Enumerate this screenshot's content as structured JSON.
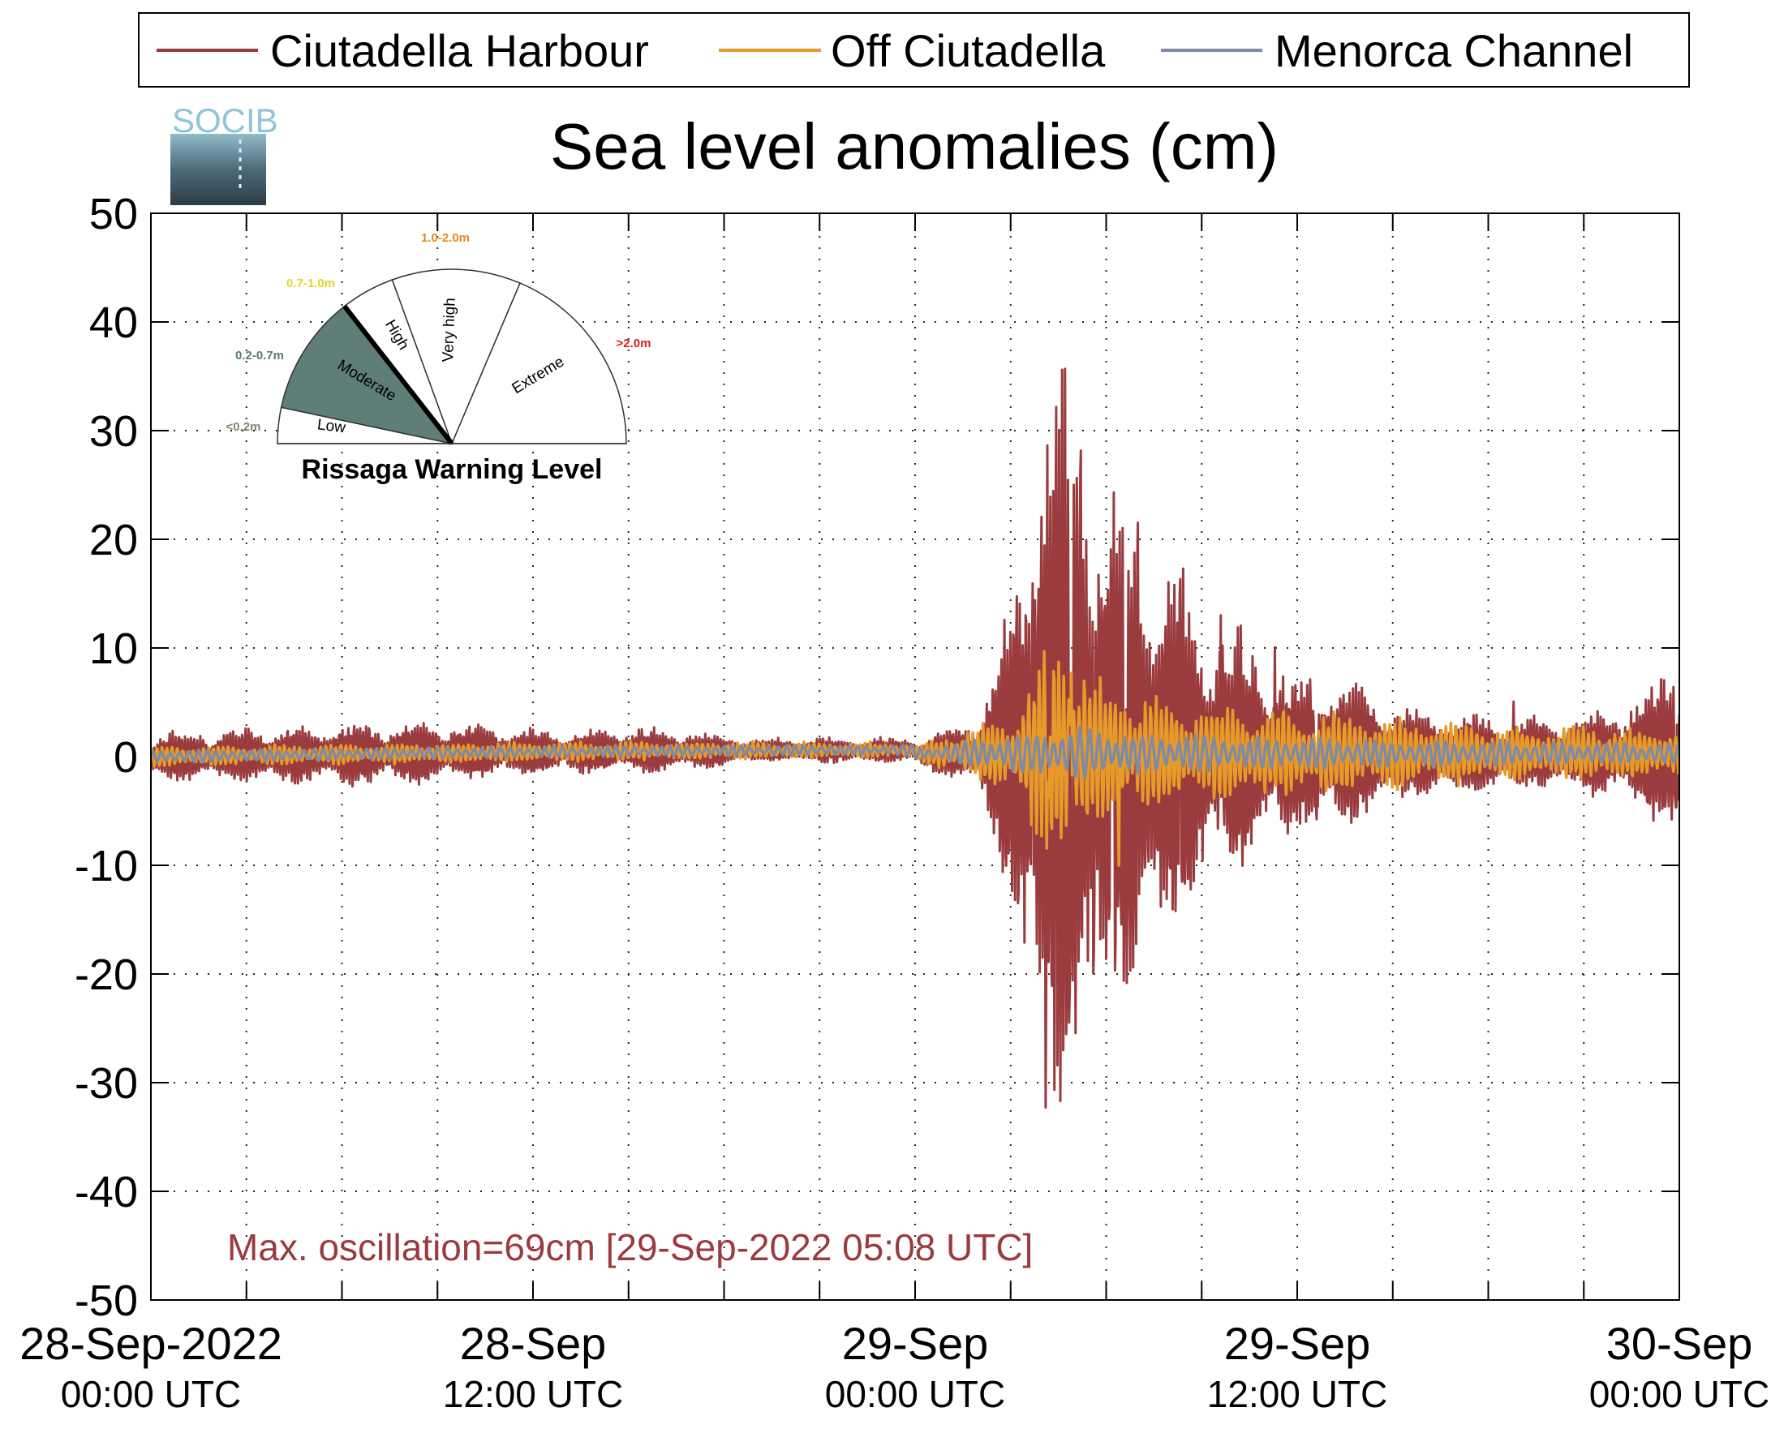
{
  "chart_data": {
    "type": "line",
    "title": "Sea level anomalies (cm)",
    "ylim": [
      -50,
      50
    ],
    "yticks": [
      50,
      40,
      30,
      20,
      10,
      0,
      -10,
      -20,
      -30,
      -40,
      -50
    ],
    "xlim_hours": [
      0,
      48
    ],
    "xticks": [
      {
        "hour": 0,
        "line1": "28-Sep-2022",
        "line2": "00:00 UTC"
      },
      {
        "hour": 12,
        "line1": "28-Sep",
        "line2": "12:00 UTC"
      },
      {
        "hour": 24,
        "line1": "29-Sep",
        "line2": "00:00 UTC"
      },
      {
        "hour": 36,
        "line1": "29-Sep",
        "line2": "12:00 UTC"
      },
      {
        "hour": 48,
        "line1": "30-Sep",
        "line2": "00:00 UTC"
      }
    ],
    "minor_xtick_hours": [
      3,
      6,
      9,
      15,
      18,
      21,
      27,
      30,
      33,
      39,
      42,
      45
    ],
    "grid": true,
    "legend_position": "top",
    "series": [
      {
        "name": "Ciutadella Harbour",
        "color": "#9a3b3e",
        "envelope": [
          [
            0,
            2
          ],
          [
            3,
            2.2
          ],
          [
            6,
            2.5
          ],
          [
            9,
            2.5
          ],
          [
            12,
            1.8
          ],
          [
            16,
            1.8
          ],
          [
            19,
            1
          ],
          [
            23,
            1
          ],
          [
            24,
            1
          ],
          [
            26,
            3
          ],
          [
            27,
            12
          ],
          [
            28,
            30
          ],
          [
            29,
            30
          ],
          [
            30,
            22
          ],
          [
            31,
            20
          ],
          [
            32,
            15
          ],
          [
            33,
            12
          ],
          [
            35,
            8
          ],
          [
            36,
            6
          ],
          [
            37,
            7
          ],
          [
            39,
            4
          ],
          [
            42,
            3
          ],
          [
            45,
            3
          ],
          [
            47,
            5
          ],
          [
            48,
            8
          ]
        ],
        "peaks": [
          [
            27.7,
            21
          ],
          [
            28.1,
            -33
          ],
          [
            28.4,
            25
          ],
          [
            28.9,
            -31
          ],
          [
            29.2,
            38
          ],
          [
            29.6,
            -29
          ],
          [
            30.2,
            22
          ],
          [
            30.6,
            -25
          ],
          [
            31.0,
            23
          ],
          [
            32.3,
            20
          ],
          [
            33.6,
            13
          ],
          [
            35.3,
            11
          ],
          [
            36.6,
            -12
          ],
          [
            42.8,
            7
          ],
          [
            47.9,
            -10
          ]
        ]
      },
      {
        "name": "Off Ciutadella",
        "color": "#e59a2a",
        "envelope": [
          [
            0,
            0.8
          ],
          [
            12,
            0.8
          ],
          [
            24,
            0.6
          ],
          [
            27,
            3
          ],
          [
            28,
            8
          ],
          [
            29,
            9
          ],
          [
            30,
            5
          ],
          [
            31,
            5
          ],
          [
            33,
            4
          ],
          [
            36,
            3.5
          ],
          [
            40,
            2.5
          ],
          [
            48,
            2
          ]
        ],
        "peaks": [
          [
            28.2,
            -10
          ],
          [
            28.9,
            11
          ],
          [
            30.4,
            -10
          ]
        ]
      },
      {
        "name": "Menorca Channel",
        "color": "#7f8aa5",
        "envelope": [
          [
            0,
            0.5
          ],
          [
            24,
            0.4
          ],
          [
            27,
            1.5
          ],
          [
            29,
            2
          ],
          [
            31,
            1.6
          ],
          [
            36,
            1.2
          ],
          [
            48,
            0.8
          ]
        ],
        "peaks": []
      }
    ],
    "annotation": "Max. oscillation=69cm [29-Sep-2022 05:08 UTC]"
  },
  "logo": {
    "text": "SOCIB"
  },
  "warning_gauge": {
    "title": "Rissaga Warning Level",
    "sectors": [
      {
        "label": "Low",
        "range": "<0.2m",
        "range_color": "#7b8a67"
      },
      {
        "label": "Moderate",
        "range": "0.2-0.7m",
        "range_color": "#5a7b75"
      },
      {
        "label": "High",
        "range": "0.7-1.0m",
        "range_color": "#e6d32a"
      },
      {
        "label": "Very high",
        "range": "1.0-2.0m",
        "range_color": "#e58a1e"
      },
      {
        "label": "Extreme",
        "range": ">2.0m",
        "range_color": "#d92020"
      }
    ],
    "active_sector": "Moderate",
    "active_color": "#5f7e78"
  }
}
